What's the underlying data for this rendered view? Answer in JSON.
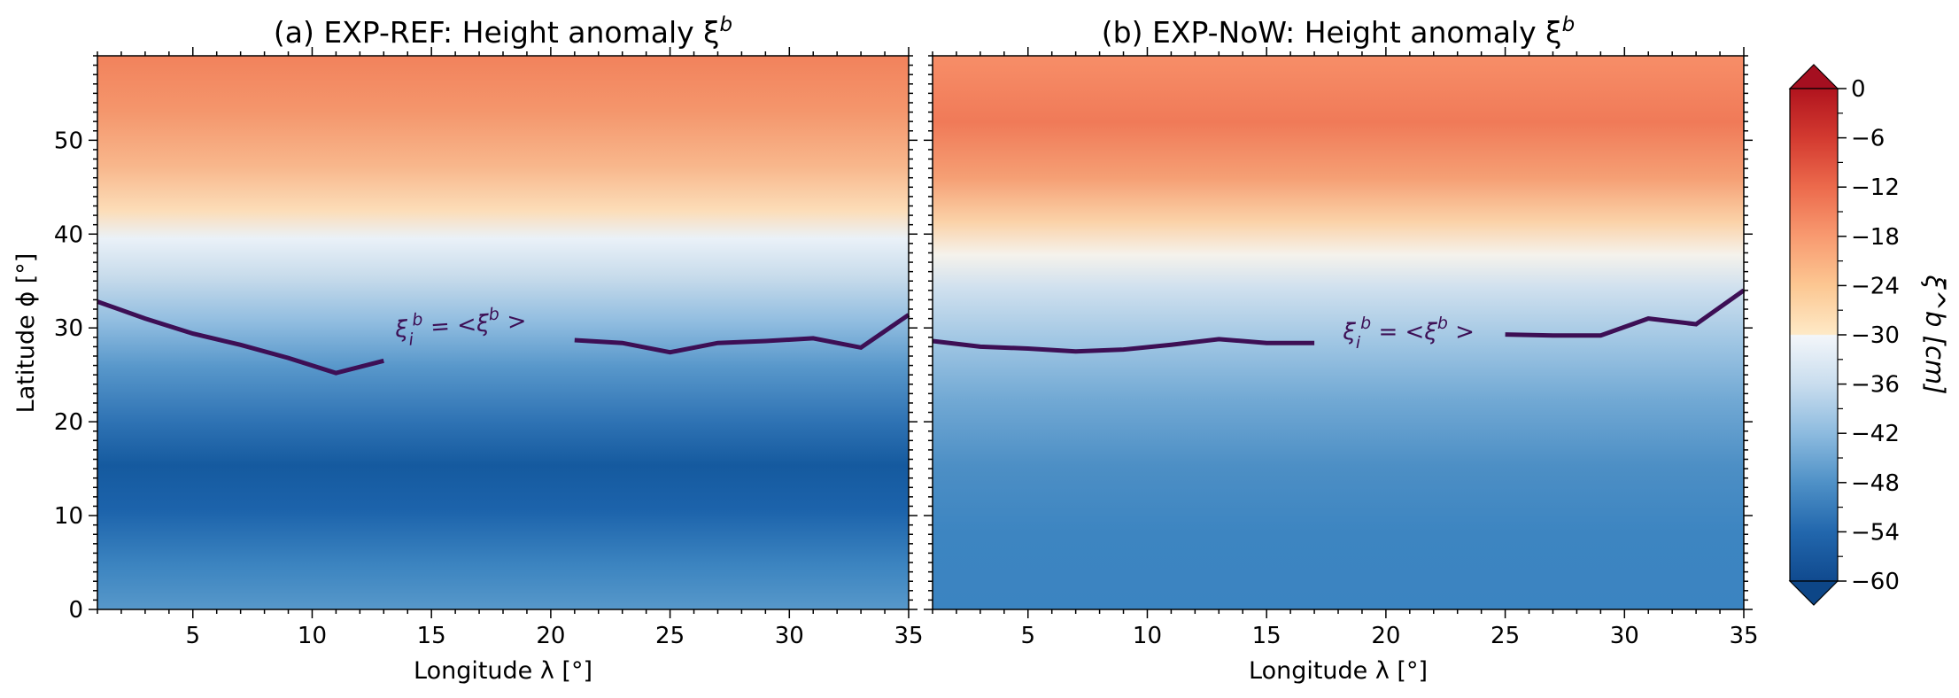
{
  "chart_data": [
    {
      "type": "heatmap",
      "title": "(a) EXP-REF: Height anomaly ξ",
      "title_sup": "b",
      "xlabel": "Longitude λ [°]",
      "ylabel": "Latitude ϕ [°]",
      "xlim": [
        1,
        35
      ],
      "ylim": [
        0,
        59
      ],
      "xticks": [
        "5",
        "10",
        "15",
        "20",
        "25",
        "30",
        "35"
      ],
      "yticks": [
        "0",
        "10",
        "20",
        "30",
        "40",
        "50"
      ],
      "contour_label": "ξ_i^b = <ξ^b>",
      "contour_x": [
        1,
        3,
        5,
        7,
        9,
        11,
        13,
        21,
        23,
        25,
        27,
        29,
        31,
        33,
        35
      ],
      "contour_y": [
        32.8,
        31.0,
        29.4,
        28.2,
        26.8,
        25.2,
        26.5,
        28.7,
        28.4,
        27.4,
        28.4,
        28.6,
        28.9,
        27.9,
        31.4
      ],
      "break_after_index": 6
    },
    {
      "type": "heatmap",
      "title": "(b) EXP-NoW: Height anomaly ξ",
      "title_sup": "b",
      "xlabel": "Longitude λ [°]",
      "ylabel": "",
      "xlim": [
        1,
        35
      ],
      "ylim": [
        0,
        59
      ],
      "xticks": [
        "5",
        "10",
        "15",
        "20",
        "25",
        "30",
        "35"
      ],
      "yticks": [],
      "contour_label": "ξ_i^b = <ξ^b>",
      "contour_x": [
        1,
        3,
        5,
        7,
        9,
        11,
        13,
        15,
        17,
        25,
        27,
        29,
        31,
        33,
        35
      ],
      "contour_y": [
        28.6,
        28.0,
        27.8,
        27.5,
        27.7,
        28.2,
        28.8,
        28.4,
        28.4,
        29.3,
        29.2,
        29.2,
        31.0,
        30.4,
        34.0
      ],
      "break_after_index": 8
    }
  ],
  "colorbar": {
    "label": "ξ^b [cm]",
    "vmin": -60,
    "vmax": 0,
    "ticks": [
      "0",
      "−6",
      "−12",
      "−18",
      "−24",
      "−30",
      "−36",
      "−42",
      "−48",
      "−54",
      "−60"
    ]
  }
}
